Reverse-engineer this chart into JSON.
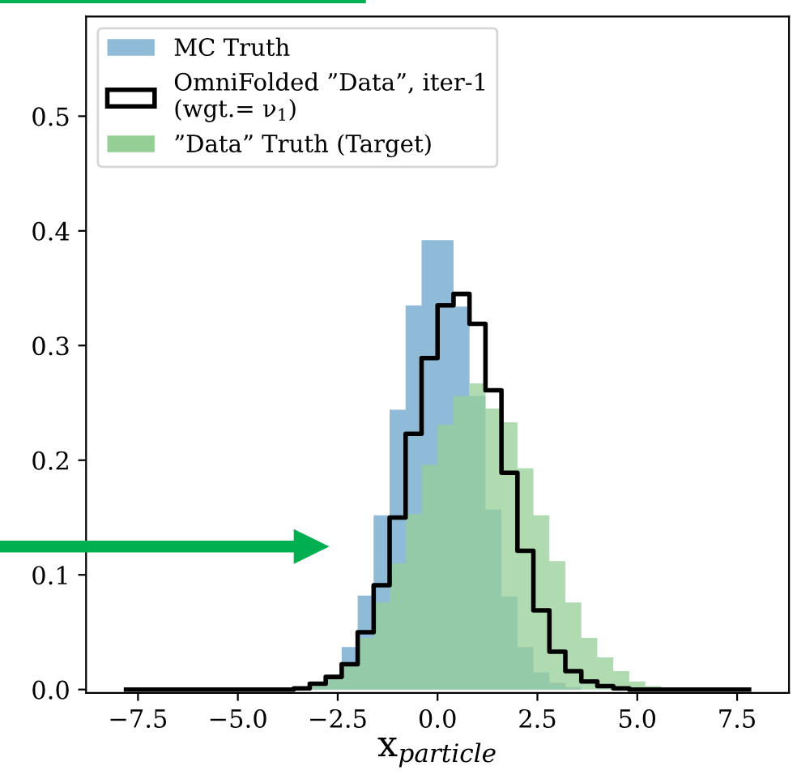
{
  "chart_data": {
    "type": "histogram",
    "xlabel": "x$_{particle}$",
    "bins": [
      -8.0,
      -7.6,
      -7.2,
      -6.8,
      -6.4,
      -6.0,
      -5.6,
      -5.2,
      -4.8,
      -4.4,
      -4.0,
      -3.6,
      -3.2,
      -2.8,
      -2.4,
      -2.0,
      -1.6,
      -1.2,
      -0.8,
      -0.4,
      0.0,
      0.4,
      0.8,
      1.2,
      1.6,
      2.0,
      2.4,
      2.8,
      3.2,
      3.6,
      4.0,
      4.4,
      4.8,
      5.2,
      5.6,
      6.0,
      6.4,
      6.8,
      7.2,
      7.6,
      8.0
    ],
    "series": [
      {
        "name": "MC Truth",
        "color": "#8fbbd9",
        "values": [
          0,
          0,
          0,
          0,
          0,
          0,
          0,
          0,
          0,
          0,
          0,
          0.001,
          0.003,
          0.012,
          0.037,
          0.082,
          0.152,
          0.244,
          0.335,
          0.392,
          0.392,
          0.334,
          0.256,
          0.157,
          0.081,
          0.037,
          0.015,
          0.006,
          0.002,
          0,
          0,
          0,
          0,
          0,
          0,
          0,
          0,
          0,
          0,
          0
        ]
      },
      {
        "name": "OmniFolded ”Data”, iter-1\n(wgt.= ν$_{1}$)",
        "type": "step",
        "color": "#000000",
        "x": [
          -7.8,
          -7.4,
          -7.0,
          -6.6,
          -6.2,
          -5.8,
          -5.4,
          -5.0,
          -4.6,
          -4.2,
          -3.8,
          -3.4,
          -3.0,
          -2.6,
          -2.2,
          -1.8,
          -1.4,
          -1.0,
          -0.6,
          -0.2,
          0.2,
          0.6,
          1.0,
          1.4,
          1.8,
          2.2,
          2.6,
          3.0,
          3.4,
          3.8,
          4.2,
          4.6,
          5.0,
          5.4,
          5.8,
          6.2,
          6.6,
          7.0,
          7.4,
          7.8
        ],
        "values": [
          0,
          0,
          0,
          0,
          0,
          0,
          0,
          0,
          0,
          0,
          0,
          0.001,
          0.005,
          0.011,
          0.022,
          0.05,
          0.091,
          0.15,
          0.223,
          0.289,
          0.335,
          0.345,
          0.319,
          0.261,
          0.189,
          0.121,
          0.069,
          0.033,
          0.016,
          0.007,
          0.003,
          0.001,
          0,
          0,
          0,
          0,
          0,
          0,
          0,
          0
        ]
      },
      {
        "name": "”Data” Truth (Target)",
        "color": "#95cf95",
        "values": [
          0,
          0,
          0,
          0,
          0,
          0,
          0,
          0,
          0,
          0,
          0,
          0.001,
          0.005,
          0.01,
          0.023,
          0.045,
          0.076,
          0.11,
          0.153,
          0.196,
          0.231,
          0.256,
          0.267,
          0.245,
          0.233,
          0.193,
          0.152,
          0.112,
          0.076,
          0.045,
          0.028,
          0.016,
          0.007,
          0.003,
          0.001,
          0,
          0,
          0,
          0,
          0
        ]
      }
    ],
    "xlim": [
      -8.8,
      8.8
    ],
    "ylim": [
      -0.003,
      0.587
    ],
    "xticks": [
      {
        "value": -7.5,
        "label": "−7.5"
      },
      {
        "value": -5.0,
        "label": "−5.0"
      },
      {
        "value": -2.5,
        "label": "−2.5"
      },
      {
        "value": 0.0,
        "label": "0.0"
      },
      {
        "value": 2.5,
        "label": "2.5"
      },
      {
        "value": 5.0,
        "label": "5.0"
      },
      {
        "value": 7.5,
        "label": "7.5"
      }
    ],
    "yticks": [
      {
        "value": 0.0,
        "label": "0.0"
      },
      {
        "value": 0.1,
        "label": "0.1"
      },
      {
        "value": 0.2,
        "label": "0.2"
      },
      {
        "value": 0.3,
        "label": "0.3"
      },
      {
        "value": 0.4,
        "label": "0.4"
      },
      {
        "value": 0.5,
        "label": "0.5"
      }
    ],
    "grid": false,
    "legend": "top left"
  }
}
